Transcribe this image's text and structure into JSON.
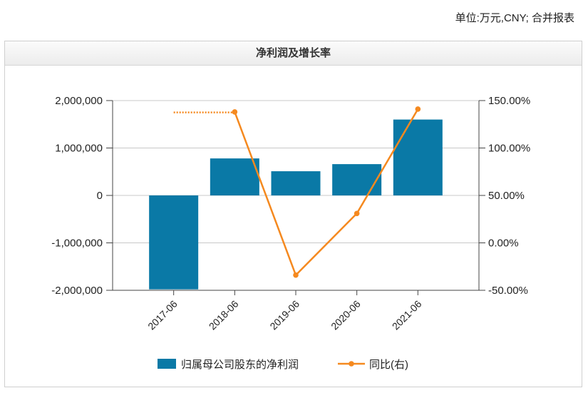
{
  "header": {
    "unit_note": "单位:万元,CNY; 合并报表"
  },
  "chart_data": {
    "type": "bar",
    "title": "净利润及增长率",
    "categories": [
      "2017-06",
      "2018-06",
      "2019-06",
      "2020-06",
      "2021-06"
    ],
    "series": [
      {
        "name": "归属母公司股东的净利润",
        "kind": "bar",
        "axis": "left",
        "color": "#0a79a6",
        "values": [
          -1980000,
          780000,
          510000,
          660000,
          1600000
        ]
      },
      {
        "name": "同比(右)",
        "kind": "line",
        "axis": "right",
        "color": "#f5891f",
        "values": [
          null,
          138,
          -34,
          31,
          141
        ],
        "dotted_lead": [
          137.5,
          137.5
        ]
      }
    ],
    "y_left": {
      "ylim": [
        -2000000,
        2000000
      ],
      "ticks": [
        2000000,
        1000000,
        0,
        -1000000,
        -2000000
      ],
      "tick_labels": [
        "2,000,000",
        "1,000,000",
        "0",
        "-1,000,000",
        "-2,000,000"
      ]
    },
    "y_right": {
      "ylim": [
        -50,
        150
      ],
      "ticks": [
        150,
        100,
        50,
        0,
        -50
      ],
      "tick_labels": [
        "150.00%",
        "100.00%",
        "50.00%",
        "0.00%",
        "-50.00%"
      ]
    },
    "grid": true,
    "legend": "bottom"
  }
}
